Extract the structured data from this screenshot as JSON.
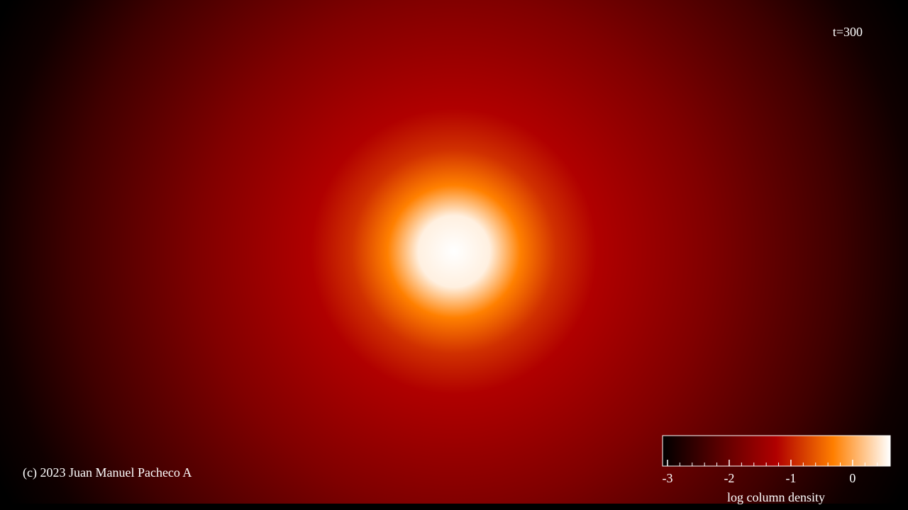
{
  "chart_data": {
    "type": "density-map",
    "title": "t=300",
    "annotation": "(c) 2023 Juan Manuel Pacheco A",
    "colorbar_label": "log column density",
    "clim": [
      -3.08,
      0.61
    ],
    "cticks": [
      -3,
      -2,
      -1,
      0
    ],
    "cminorticks": [
      -2.8,
      -2.6,
      -2.4,
      -2.2,
      -1.8,
      -1.6,
      -1.4,
      -1.2,
      -0.8,
      -0.6,
      -0.4,
      -0.2,
      0.2,
      0.4
    ],
    "colormap": [
      "#000000",
      "#5a0000",
      "#b00000",
      "#ff7f00",
      "#ffffff"
    ]
  }
}
